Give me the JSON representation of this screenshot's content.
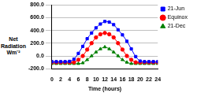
{
  "chart_data": {
    "type": "line",
    "xlabel": "Time (hours)",
    "ylabel": "Net Radiation Wm⁻²",
    "x": [
      0,
      1,
      2,
      3,
      4,
      5,
      6,
      7,
      8,
      9,
      10,
      11,
      12,
      13,
      14,
      15,
      16,
      17,
      18,
      19,
      20,
      21,
      22,
      23,
      24
    ],
    "series": [
      {
        "name": "21-Jun",
        "color": "#0000ff",
        "marker": "square",
        "values": [
          -90,
          -90,
          -90,
          -90,
          -85,
          -50,
          40,
          150,
          270,
          360,
          440,
          500,
          540,
          530,
          490,
          410,
          330,
          230,
          110,
          -10,
          -80,
          -90,
          -90,
          -90,
          -90
        ]
      },
      {
        "name": "Equinox",
        "color": "#ff0000",
        "marker": "circle",
        "values": [
          -100,
          -100,
          -100,
          -100,
          -100,
          -100,
          -60,
          0,
          100,
          200,
          290,
          340,
          360,
          340,
          290,
          200,
          100,
          0,
          -60,
          -100,
          -100,
          -100,
          -100,
          -100,
          -100
        ]
      },
      {
        "name": "21-Dec",
        "color": "#008000",
        "marker": "triangle",
        "values": [
          -120,
          -120,
          -120,
          -120,
          -120,
          -120,
          -120,
          -110,
          -60,
          0,
          60,
          110,
          140,
          110,
          60,
          0,
          -60,
          -100,
          -120,
          -120,
          -120,
          -120,
          -120,
          -120,
          -120
        ]
      }
    ],
    "xlim": [
      0,
      24
    ],
    "xticks": [
      0,
      2,
      4,
      6,
      8,
      10,
      12,
      14,
      16,
      18,
      20,
      22,
      24
    ],
    "ylim": [
      -200,
      800
    ],
    "yticks": [
      {
        "value": -200,
        "label": "-200.0"
      },
      {
        "value": 0,
        "label": "0.0"
      },
      {
        "value": 200,
        "label": "200.0"
      },
      {
        "value": 400,
        "label": "400.0"
      },
      {
        "value": 600,
        "label": "600.0"
      },
      {
        "value": 800,
        "label": "800.0"
      }
    ],
    "grid": true,
    "legend": "right"
  }
}
